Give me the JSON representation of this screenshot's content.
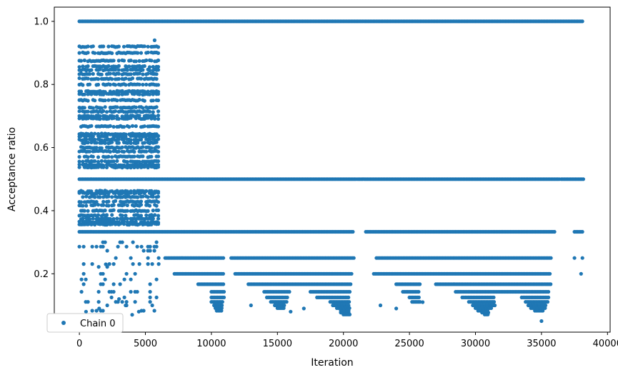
{
  "chart_data": {
    "type": "scatter",
    "title": "",
    "xlabel": "Iteration",
    "ylabel": "Acceptance ratio",
    "xlim": [
      -1900,
      40200
    ],
    "ylim": [
      0.015,
      1.045
    ],
    "x_ticks": [
      0,
      5000,
      10000,
      15000,
      20000,
      25000,
      30000,
      35000,
      40000
    ],
    "y_ticks": [
      0.2,
      0.4,
      0.6,
      0.8,
      1.0
    ],
    "x_tick_labels": [
      "0",
      "5000",
      "10000",
      "15000",
      "20000",
      "25000",
      "30000",
      "35000",
      "40000"
    ],
    "y_tick_labels": [
      "0.2",
      "0.4",
      "0.6",
      "0.8",
      "1.0"
    ],
    "grid": false,
    "legend": {
      "position": "lower-left",
      "entries": [
        "Chain 0"
      ]
    },
    "color": "#1f77b4",
    "series": [
      {
        "name": "Chain 0",
        "bands": [
          {
            "y": 1.0,
            "segments": [
              [
                0,
                38200
              ]
            ]
          },
          {
            "y": 0.5,
            "segments": [
              [
                0,
                21000
              ],
              [
                21100,
                36400
              ],
              [
                36500,
                38200
              ]
            ]
          },
          {
            "y": 0.333,
            "segments": [
              [
                0,
                20800
              ],
              [
                21700,
                36000
              ],
              [
                37500,
                38200
              ]
            ]
          },
          {
            "y": 0.25,
            "segments": [
              [
                6500,
                11000
              ],
              [
                11500,
                20800
              ],
              [
                22500,
                35800
              ]
            ]
          },
          {
            "y": 0.2,
            "segments": [
              [
                7200,
                11000
              ],
              [
                11800,
                20700
              ],
              [
                22300,
                35700
              ]
            ]
          },
          {
            "y": 0.167,
            "segments": [
              [
                9000,
                11000
              ],
              [
                12800,
                20600
              ],
              [
                24000,
                25800
              ],
              [
                27000,
                35700
              ]
            ]
          },
          {
            "y": 0.143,
            "segments": [
              [
                10000,
                11000
              ],
              [
                14000,
                16000
              ],
              [
                17500,
                20500
              ],
              [
                24500,
                25800
              ],
              [
                28500,
                35600
              ]
            ]
          },
          {
            "y": 0.125,
            "segments": [
              [
                10000,
                11000
              ],
              [
                14200,
                15800
              ],
              [
                18000,
                20500
              ],
              [
                25000,
                25800
              ],
              [
                29000,
                31500
              ],
              [
                33500,
                35600
              ]
            ]
          },
          {
            "y": 0.111,
            "segments": [
              [
                10000,
                10900
              ],
              [
                14500,
                15800
              ],
              [
                19000,
                20500
              ],
              [
                25200,
                25800
              ],
              [
                29500,
                31500
              ],
              [
                33800,
                35500
              ]
            ]
          },
          {
            "y": 0.1,
            "segments": [
              [
                10200,
                10800
              ],
              [
                14800,
                15600
              ],
              [
                19200,
                20500
              ],
              [
                29800,
                31500
              ],
              [
                34000,
                35400
              ]
            ]
          },
          {
            "y": 0.091,
            "segments": [
              [
                10300,
                10800
              ],
              [
                15000,
                15500
              ],
              [
                19500,
                20500
              ],
              [
                30000,
                31200
              ],
              [
                34200,
                35300
              ]
            ]
          },
          {
            "y": 0.083,
            "segments": [
              [
                10400,
                10800
              ],
              [
                19800,
                20500
              ],
              [
                30200,
                31000
              ],
              [
                34500,
                35200
              ]
            ]
          },
          {
            "y": 0.077,
            "segments": [
              [
                19800,
                20500
              ],
              [
                30500,
                31000
              ]
            ]
          },
          {
            "y": 0.071,
            "segments": [
              [
                20000,
                20500
              ],
              [
                30700,
                31000
              ]
            ]
          }
        ],
        "early_phase": {
          "x_range": [
            0,
            6100
          ],
          "dense_bands": [
            0.92,
            0.9,
            0.875,
            0.857,
            0.846,
            0.833,
            0.818,
            0.8,
            0.778,
            0.769,
            0.75,
            0.727,
            0.714,
            0.7,
            0.692,
            0.667,
            0.643,
            0.636,
            0.625,
            0.615,
            0.6,
            0.588,
            0.571,
            0.556,
            0.545,
            0.538,
            0.462,
            0.455,
            0.444,
            0.429,
            0.417,
            0.4,
            0.385,
            0.375,
            0.364,
            0.357
          ],
          "sparse_bands": [
            0.3,
            0.286,
            0.273,
            0.25,
            0.231,
            0.222,
            0.2,
            0.182,
            0.167,
            0.143,
            0.125,
            0.111,
            0.1,
            0.083
          ]
        },
        "isolated_points": [
          [
            5700,
            0.94
          ],
          [
            2000,
            0.23
          ],
          [
            3000,
            0.12
          ],
          [
            3500,
            0.1
          ],
          [
            1500,
            0.09
          ],
          [
            4500,
            0.08
          ],
          [
            500,
            0.08
          ],
          [
            4000,
            0.07
          ],
          [
            13000,
            0.1
          ],
          [
            17000,
            0.09
          ],
          [
            26000,
            0.11
          ],
          [
            24000,
            0.09
          ],
          [
            37500,
            0.25
          ],
          [
            38000,
            0.2
          ],
          [
            38100,
            0.25
          ],
          [
            16000,
            0.08
          ],
          [
            22800,
            0.1
          ],
          [
            35000,
            0.05
          ]
        ]
      }
    ]
  }
}
